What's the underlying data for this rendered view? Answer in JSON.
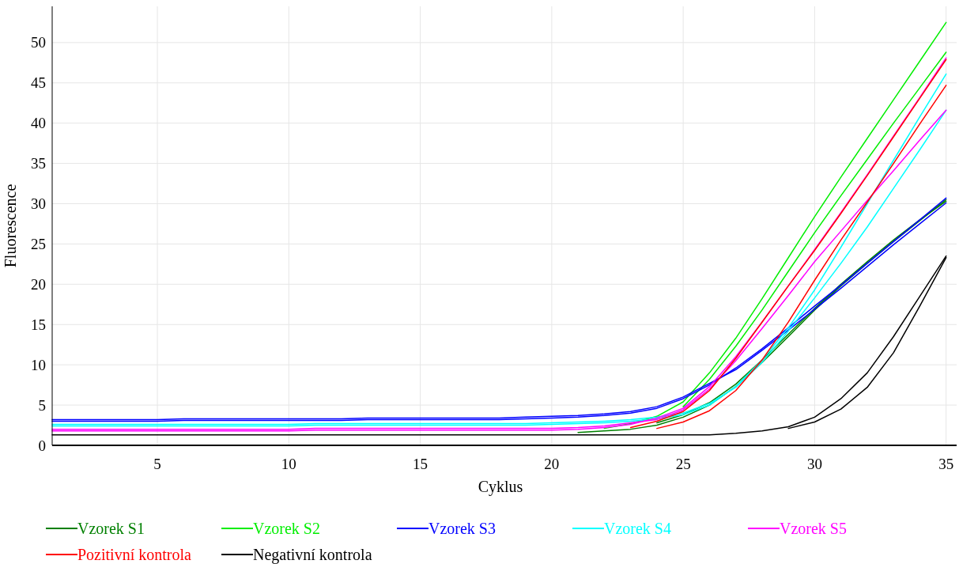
{
  "chart_data": {
    "type": "line",
    "xlabel": "Cyklus",
    "ylabel": "Fluorescence",
    "x": [
      1,
      2,
      3,
      4,
      5,
      6,
      7,
      8,
      9,
      10,
      11,
      12,
      13,
      14,
      15,
      16,
      17,
      18,
      19,
      20,
      21,
      22,
      23,
      24,
      25,
      26,
      27,
      28,
      29,
      30,
      31,
      32,
      33,
      34,
      35
    ],
    "xlim": [
      1,
      35.4
    ],
    "xticks": [
      5,
      10,
      15,
      20,
      25,
      30,
      35
    ],
    "ylim": [
      0,
      54.5
    ],
    "yticks": [
      0,
      5,
      10,
      15,
      20,
      25,
      30,
      35,
      40,
      45,
      50
    ],
    "grid": true,
    "legend": "bottom",
    "marker": "none",
    "line_style": "solid",
    "series": [
      {
        "name": "Vzorek S1",
        "color": "#008000",
        "values": [
          null,
          null,
          null,
          null,
          null,
          null,
          null,
          null,
          null,
          null,
          null,
          null,
          null,
          null,
          null,
          null,
          null,
          null,
          null,
          null,
          1.6,
          1.8,
          2.0,
          2.5,
          3.5,
          5,
          7.3,
          10.3,
          13.5,
          16.8,
          19.8,
          22.6,
          25.3,
          27.9,
          30.5
        ]
      },
      {
        "color": "#008000",
        "values": [
          null,
          null,
          null,
          null,
          null,
          null,
          null,
          null,
          null,
          null,
          null,
          null,
          null,
          null,
          null,
          null,
          null,
          null,
          null,
          null,
          null,
          null,
          null,
          2.8,
          3.8,
          5.3,
          7.6,
          10.6,
          13.8,
          17.0,
          20.0,
          22.8,
          25.5,
          28.0,
          30.3
        ]
      },
      {
        "name": "Vzorek S2",
        "color": "#00ee00",
        "values": [
          null,
          null,
          null,
          null,
          null,
          null,
          null,
          null,
          null,
          null,
          null,
          null,
          null,
          null,
          null,
          null,
          null,
          null,
          null,
          null,
          null,
          2.1,
          2.7,
          3.6,
          5.4,
          9,
          13.3,
          18.2,
          23.3,
          28.4,
          33.3,
          38.1,
          42.9,
          47.7,
          52.5
        ]
      },
      {
        "color": "#00ee00",
        "values": [
          null,
          null,
          null,
          null,
          null,
          null,
          null,
          null,
          null,
          null,
          null,
          null,
          null,
          null,
          null,
          null,
          null,
          null,
          null,
          null,
          null,
          null,
          null,
          null,
          4.8,
          8.2,
          12.3,
          16.8,
          21.6,
          26.4,
          31,
          35.5,
          40,
          44.4,
          48.8
        ]
      },
      {
        "name": "Vzorek S3",
        "color": "#0000ff",
        "values": [
          3.0,
          3.0,
          3.0,
          3.0,
          3.0,
          3.1,
          3.1,
          3.1,
          3.1,
          3.1,
          3.1,
          3.1,
          3.2,
          3.2,
          3.2,
          3.2,
          3.2,
          3.2,
          3.3,
          3.4,
          3.5,
          3.7,
          4.0,
          4.6,
          5.8,
          7.5,
          9.6,
          12.0,
          14.6,
          17.3,
          19.9,
          22.6,
          25.3,
          28,
          30.7
        ]
      },
      {
        "color": "#0000ff",
        "values": [
          3.2,
          3.2,
          3.2,
          3.2,
          3.2,
          3.3,
          3.3,
          3.3,
          3.3,
          3.3,
          3.3,
          3.3,
          3.4,
          3.4,
          3.4,
          3.4,
          3.4,
          3.4,
          3.5,
          3.6,
          3.7,
          3.9,
          4.2,
          4.8,
          6.0,
          7.7,
          9.4,
          11.8,
          14.3,
          16.9,
          19.5,
          22.2,
          24.9,
          27.5,
          30.1
        ]
      },
      {
        "name": "Vzorek S4",
        "color": "#00ffff",
        "values": [
          2.4,
          2.4,
          2.4,
          2.4,
          2.4,
          2.4,
          2.4,
          2.4,
          2.4,
          2.4,
          2.5,
          2.5,
          2.5,
          2.5,
          2.5,
          2.5,
          2.5,
          2.5,
          2.5,
          2.6,
          2.7,
          2.8,
          3.0,
          3.3,
          3.8,
          5.0,
          7.3,
          10.6,
          14.6,
          19.3,
          24.6,
          30,
          35.4,
          40.8,
          46.1
        ]
      },
      {
        "color": "#00ffff",
        "values": [
          2.6,
          2.6,
          2.6,
          2.6,
          2.6,
          2.6,
          2.6,
          2.6,
          2.6,
          2.6,
          2.7,
          2.7,
          2.7,
          2.7,
          2.7,
          2.7,
          2.7,
          2.7,
          2.7,
          2.8,
          2.9,
          3.0,
          3.2,
          3.5,
          4.0,
          5.2,
          7.2,
          10.3,
          14.2,
          18.3,
          22.6,
          27.1,
          31.9,
          36.7,
          41.6
        ]
      },
      {
        "name": "Vzorek S5",
        "color": "#ff00ff",
        "values": [
          1.8,
          1.8,
          1.8,
          1.8,
          1.8,
          1.8,
          1.8,
          1.8,
          1.8,
          1.8,
          1.9,
          1.9,
          1.9,
          1.9,
          1.9,
          1.9,
          1.9,
          1.9,
          1.9,
          1.9,
          2.0,
          2.2,
          2.6,
          3.4,
          4.6,
          7.3,
          11,
          15.3,
          19.8,
          24.3,
          28.9,
          33.6,
          38.4,
          43.2,
          48.1
        ]
      },
      {
        "color": "#ff00ff",
        "values": [
          2.0,
          2.0,
          2.0,
          2.0,
          2.0,
          2.0,
          2.0,
          2.0,
          2.0,
          2.0,
          2.1,
          2.1,
          2.1,
          2.1,
          2.1,
          2.1,
          2.1,
          2.1,
          2.1,
          2.1,
          2.2,
          2.4,
          2.8,
          3.2,
          4.4,
          7.0,
          10.5,
          14.5,
          18.6,
          22.8,
          26.6,
          30.4,
          34.1,
          37.9,
          41.6
        ]
      },
      {
        "name": "Pozitivní kontrola",
        "color": "#ff0000",
        "values": [
          null,
          null,
          null,
          null,
          null,
          null,
          null,
          null,
          null,
          null,
          null,
          null,
          null,
          null,
          null,
          null,
          null,
          null,
          null,
          null,
          null,
          null,
          2.2,
          3.0,
          4.2,
          6.8,
          10.8,
          15.3,
          19.8,
          24.2,
          28.8,
          33.5,
          38.3,
          43.1,
          47.9
        ]
      },
      {
        "color": "#ff0000",
        "values": [
          null,
          null,
          null,
          null,
          null,
          null,
          null,
          null,
          null,
          null,
          null,
          null,
          null,
          null,
          null,
          null,
          null,
          null,
          null,
          null,
          null,
          null,
          null,
          2.1,
          2.9,
          4.3,
          6.8,
          10.6,
          15.3,
          20.5,
          25.5,
          30.2,
          35,
          39.9,
          44.7
        ]
      },
      {
        "name": "Negativní kontrola",
        "color": "#000000",
        "values": [
          1.3,
          1.3,
          1.3,
          1.3,
          1.3,
          1.3,
          1.3,
          1.3,
          1.3,
          1.3,
          1.3,
          1.3,
          1.3,
          1.3,
          1.3,
          1.3,
          1.3,
          1.3,
          1.3,
          1.3,
          1.3,
          1.3,
          1.3,
          1.3,
          1.3,
          1.3,
          1.5,
          1.8,
          2.3,
          3.5,
          5.8,
          9,
          13.5,
          18.5,
          23.5
        ]
      },
      {
        "color": "#000000",
        "values": [
          null,
          null,
          null,
          null,
          null,
          null,
          null,
          null,
          null,
          null,
          null,
          null,
          null,
          null,
          null,
          null,
          null,
          null,
          null,
          null,
          null,
          null,
          null,
          null,
          null,
          null,
          null,
          null,
          2.1,
          2.9,
          4.5,
          7.2,
          11.5,
          17.3,
          23.3
        ]
      }
    ]
  }
}
